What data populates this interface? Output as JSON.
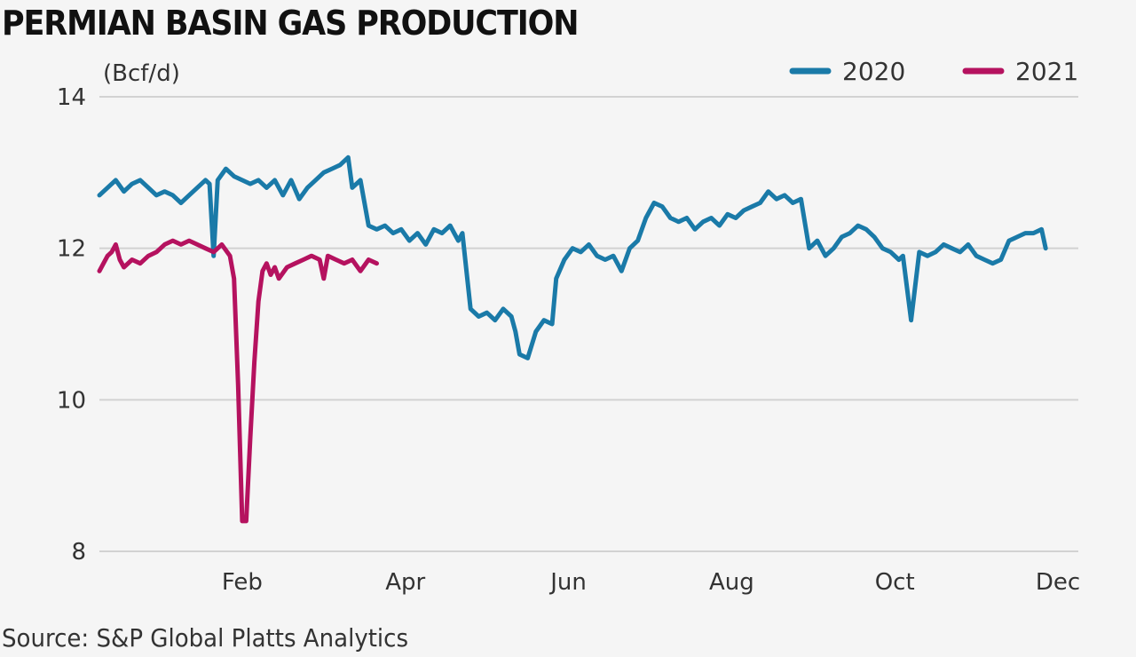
{
  "title": "PERMIAN BASIN GAS PRODUCTION",
  "source": "Source: S&P Global Platts Analytics",
  "chart_data": {
    "type": "line",
    "title": "PERMIAN BASIN GAS PRODUCTION",
    "ylabel": "(Bcf/d)",
    "ylim": [
      8,
      14
    ],
    "yticks": [
      "8",
      "10",
      "12",
      "14"
    ],
    "xlim": [
      0,
      12
    ],
    "xticks": [
      {
        "label": "Feb",
        "x": 1.75
      },
      {
        "label": "Apr",
        "x": 3.75
      },
      {
        "label": "Jun",
        "x": 5.75
      },
      {
        "label": "Aug",
        "x": 7.75
      },
      {
        "label": "Oct",
        "x": 9.75
      },
      {
        "label": "Dec",
        "x": 11.75
      }
    ],
    "grid": true,
    "legend_position": "top-right",
    "series": [
      {
        "name": "2020",
        "color": "#1a7aa8",
        "points": [
          [
            0.0,
            12.7
          ],
          [
            0.1,
            12.8
          ],
          [
            0.2,
            12.9
          ],
          [
            0.3,
            12.75
          ],
          [
            0.4,
            12.85
          ],
          [
            0.5,
            12.9
          ],
          [
            0.6,
            12.8
          ],
          [
            0.7,
            12.7
          ],
          [
            0.8,
            12.75
          ],
          [
            0.9,
            12.7
          ],
          [
            1.0,
            12.6
          ],
          [
            1.1,
            12.7
          ],
          [
            1.2,
            12.8
          ],
          [
            1.3,
            12.9
          ],
          [
            1.35,
            12.85
          ],
          [
            1.4,
            11.9
          ],
          [
            1.45,
            12.9
          ],
          [
            1.55,
            13.05
          ],
          [
            1.65,
            12.95
          ],
          [
            1.75,
            12.9
          ],
          [
            1.85,
            12.85
          ],
          [
            1.95,
            12.9
          ],
          [
            2.05,
            12.8
          ],
          [
            2.15,
            12.9
          ],
          [
            2.25,
            12.7
          ],
          [
            2.35,
            12.9
          ],
          [
            2.45,
            12.65
          ],
          [
            2.55,
            12.8
          ],
          [
            2.65,
            12.9
          ],
          [
            2.75,
            13.0
          ],
          [
            2.85,
            13.05
          ],
          [
            2.95,
            13.1
          ],
          [
            3.05,
            13.2
          ],
          [
            3.1,
            12.8
          ],
          [
            3.2,
            12.9
          ],
          [
            3.3,
            12.3
          ],
          [
            3.4,
            12.25
          ],
          [
            3.5,
            12.3
          ],
          [
            3.6,
            12.2
          ],
          [
            3.7,
            12.25
          ],
          [
            3.8,
            12.1
          ],
          [
            3.9,
            12.2
          ],
          [
            4.0,
            12.05
          ],
          [
            4.1,
            12.25
          ],
          [
            4.2,
            12.2
          ],
          [
            4.3,
            12.3
          ],
          [
            4.4,
            12.1
          ],
          [
            4.45,
            12.2
          ],
          [
            4.55,
            11.2
          ],
          [
            4.65,
            11.1
          ],
          [
            4.75,
            11.15
          ],
          [
            4.85,
            11.05
          ],
          [
            4.95,
            11.2
          ],
          [
            5.05,
            11.1
          ],
          [
            5.1,
            10.9
          ],
          [
            5.15,
            10.6
          ],
          [
            5.25,
            10.55
          ],
          [
            5.35,
            10.9
          ],
          [
            5.45,
            11.05
          ],
          [
            5.55,
            11.0
          ],
          [
            5.6,
            11.6
          ],
          [
            5.7,
            11.85
          ],
          [
            5.8,
            12.0
          ],
          [
            5.9,
            11.95
          ],
          [
            6.0,
            12.05
          ],
          [
            6.1,
            11.9
          ],
          [
            6.2,
            11.85
          ],
          [
            6.3,
            11.9
          ],
          [
            6.4,
            11.7
          ],
          [
            6.5,
            12.0
          ],
          [
            6.6,
            12.1
          ],
          [
            6.7,
            12.4
          ],
          [
            6.8,
            12.6
          ],
          [
            6.9,
            12.55
          ],
          [
            7.0,
            12.4
          ],
          [
            7.1,
            12.35
          ],
          [
            7.2,
            12.4
          ],
          [
            7.3,
            12.25
          ],
          [
            7.4,
            12.35
          ],
          [
            7.5,
            12.4
          ],
          [
            7.6,
            12.3
          ],
          [
            7.7,
            12.45
          ],
          [
            7.8,
            12.4
          ],
          [
            7.9,
            12.5
          ],
          [
            8.0,
            12.55
          ],
          [
            8.1,
            12.6
          ],
          [
            8.2,
            12.75
          ],
          [
            8.3,
            12.65
          ],
          [
            8.4,
            12.7
          ],
          [
            8.5,
            12.6
          ],
          [
            8.6,
            12.65
          ],
          [
            8.7,
            12.0
          ],
          [
            8.8,
            12.1
          ],
          [
            8.9,
            11.9
          ],
          [
            9.0,
            12.0
          ],
          [
            9.1,
            12.15
          ],
          [
            9.2,
            12.2
          ],
          [
            9.3,
            12.3
          ],
          [
            9.4,
            12.25
          ],
          [
            9.5,
            12.15
          ],
          [
            9.6,
            12.0
          ],
          [
            9.7,
            11.95
          ],
          [
            9.8,
            11.85
          ],
          [
            9.85,
            11.9
          ],
          [
            9.95,
            11.05
          ],
          [
            10.05,
            11.95
          ],
          [
            10.15,
            11.9
          ],
          [
            10.25,
            11.95
          ],
          [
            10.35,
            12.05
          ],
          [
            10.45,
            12.0
          ],
          [
            10.55,
            11.95
          ],
          [
            10.65,
            12.05
          ],
          [
            10.75,
            11.9
          ],
          [
            10.85,
            11.85
          ],
          [
            10.95,
            11.8
          ],
          [
            11.05,
            11.85
          ],
          [
            11.15,
            12.1
          ],
          [
            11.25,
            12.15
          ],
          [
            11.35,
            12.2
          ],
          [
            11.45,
            12.2
          ],
          [
            11.55,
            12.25
          ],
          [
            11.6,
            12.0
          ]
        ]
      },
      {
        "name": "2021",
        "color": "#b5125f",
        "points": [
          [
            0.0,
            11.7
          ],
          [
            0.05,
            11.8
          ],
          [
            0.1,
            11.9
          ],
          [
            0.15,
            11.95
          ],
          [
            0.2,
            12.05
          ],
          [
            0.25,
            11.85
          ],
          [
            0.3,
            11.75
          ],
          [
            0.4,
            11.85
          ],
          [
            0.5,
            11.8
          ],
          [
            0.6,
            11.9
          ],
          [
            0.7,
            11.95
          ],
          [
            0.8,
            12.05
          ],
          [
            0.9,
            12.1
          ],
          [
            1.0,
            12.05
          ],
          [
            1.1,
            12.1
          ],
          [
            1.2,
            12.05
          ],
          [
            1.3,
            12.0
          ],
          [
            1.4,
            11.95
          ],
          [
            1.5,
            12.05
          ],
          [
            1.6,
            11.9
          ],
          [
            1.65,
            11.6
          ],
          [
            1.7,
            10.2
          ],
          [
            1.75,
            8.4
          ],
          [
            1.8,
            8.4
          ],
          [
            1.85,
            9.5
          ],
          [
            1.9,
            10.5
          ],
          [
            1.95,
            11.3
          ],
          [
            2.0,
            11.7
          ],
          [
            2.05,
            11.8
          ],
          [
            2.1,
            11.65
          ],
          [
            2.15,
            11.75
          ],
          [
            2.2,
            11.6
          ],
          [
            2.3,
            11.75
          ],
          [
            2.4,
            11.8
          ],
          [
            2.5,
            11.85
          ],
          [
            2.6,
            11.9
          ],
          [
            2.7,
            11.85
          ],
          [
            2.75,
            11.6
          ],
          [
            2.8,
            11.9
          ],
          [
            2.9,
            11.85
          ],
          [
            3.0,
            11.8
          ],
          [
            3.1,
            11.85
          ],
          [
            3.2,
            11.7
          ],
          [
            3.3,
            11.85
          ],
          [
            3.4,
            11.8
          ]
        ]
      }
    ]
  }
}
